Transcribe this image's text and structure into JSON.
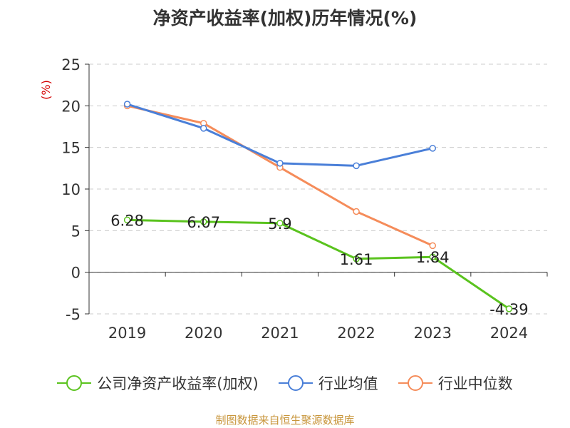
{
  "title": "净资产收益率(加权)历年情况(%)",
  "source": "制图数据来自恒生聚源数据库",
  "chart_data": {
    "type": "line",
    "title": "净资产收益率(加权)历年情况(%)",
    "ylabel": "(%)",
    "xlabel": "",
    "categories": [
      "2019",
      "2020",
      "2021",
      "2022",
      "2023",
      "2024"
    ],
    "ylim": [
      -5,
      25
    ],
    "yticks": [
      -5,
      0,
      5,
      10,
      15,
      20,
      25
    ],
    "grid": true,
    "legend_position": "bottom",
    "series": [
      {
        "name": "公司净资产收益率(加权)",
        "color": "#5ac31e",
        "values": [
          6.28,
          6.07,
          5.9,
          1.61,
          1.84,
          -4.39
        ],
        "labels": [
          "6.28",
          "6.07",
          "5.9",
          "1.61",
          "1.84",
          "-4.39"
        ]
      },
      {
        "name": "行业均值",
        "color": "#4a7fd8",
        "values": [
          20.2,
          17.3,
          13.1,
          12.8,
          14.9,
          null
        ]
      },
      {
        "name": "行业中位数",
        "color": "#f58c5a",
        "values": [
          20.0,
          17.9,
          12.6,
          7.3,
          3.2,
          null
        ]
      }
    ]
  }
}
